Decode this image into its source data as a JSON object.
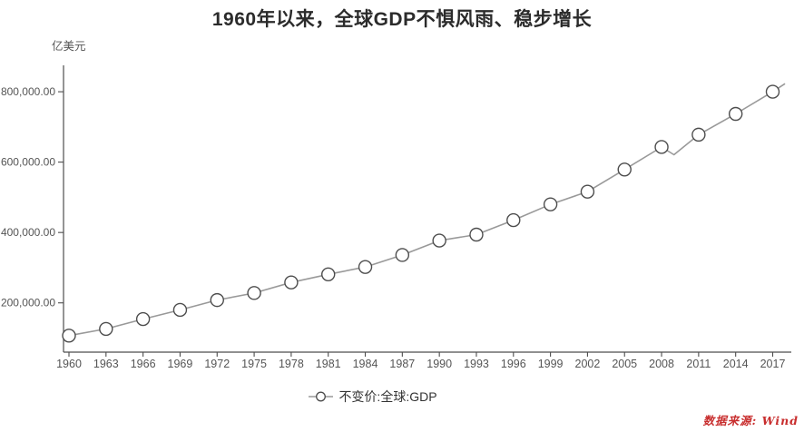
{
  "source_note": "数据来源: Wind",
  "colors": {
    "line": "#999999",
    "marker_stroke": "#4d4d4d",
    "marker_fill": "#ffffff",
    "axis": "#4d4d4d",
    "tick_text": "#555555",
    "title_text": "#2b2b2b",
    "legend_text": "#333333",
    "source_text": "#c82e2e"
  },
  "chart_data": {
    "type": "line",
    "title": "1960年以来，全球GDP不惧风雨、稳步增长",
    "ylabel_unit": "亿美元",
    "grid": false,
    "legend": {
      "label": "不变价:全球:GDP",
      "position": "bottom-center",
      "marker": "open-circle-on-line"
    },
    "ylim": [
      60000,
      875000
    ],
    "y_ticks": [
      {
        "value": 200000,
        "label": "200,000.00"
      },
      {
        "value": 400000,
        "label": "400,000.00"
      },
      {
        "value": 600000,
        "label": "600,000.00"
      },
      {
        "value": 800000,
        "label": "800,000.00"
      }
    ],
    "x_ticks": [
      "1960",
      "1963",
      "1966",
      "1969",
      "1972",
      "1975",
      "1978",
      "1981",
      "1984",
      "1987",
      "1990",
      "1993",
      "1996",
      "1999",
      "2002",
      "2005",
      "2008",
      "2011",
      "2014",
      "2017"
    ],
    "series": [
      {
        "name": "不变价:全球:GDP",
        "marker_years": [
          1960,
          1963,
          1966,
          1969,
          1972,
          1975,
          1978,
          1981,
          1984,
          1987,
          1990,
          1993,
          1996,
          1999,
          2002,
          2005,
          2008,
          2011,
          2014,
          2017
        ],
        "points": [
          [
            1960,
            107000
          ],
          [
            1963,
            126000
          ],
          [
            1966,
            154000
          ],
          [
            1969,
            180000
          ],
          [
            1972,
            208000
          ],
          [
            1975,
            228000
          ],
          [
            1978,
            258000
          ],
          [
            1981,
            281000
          ],
          [
            1984,
            302000
          ],
          [
            1987,
            336000
          ],
          [
            1990,
            377000
          ],
          [
            1993,
            394000
          ],
          [
            1996,
            435000
          ],
          [
            1999,
            480000
          ],
          [
            2002,
            516000
          ],
          [
            2005,
            579000
          ],
          [
            2008,
            643000
          ],
          [
            2009,
            621000
          ],
          [
            2011,
            678000
          ],
          [
            2014,
            737000
          ],
          [
            2017,
            800000
          ],
          [
            2018,
            823000
          ]
        ]
      }
    ]
  }
}
